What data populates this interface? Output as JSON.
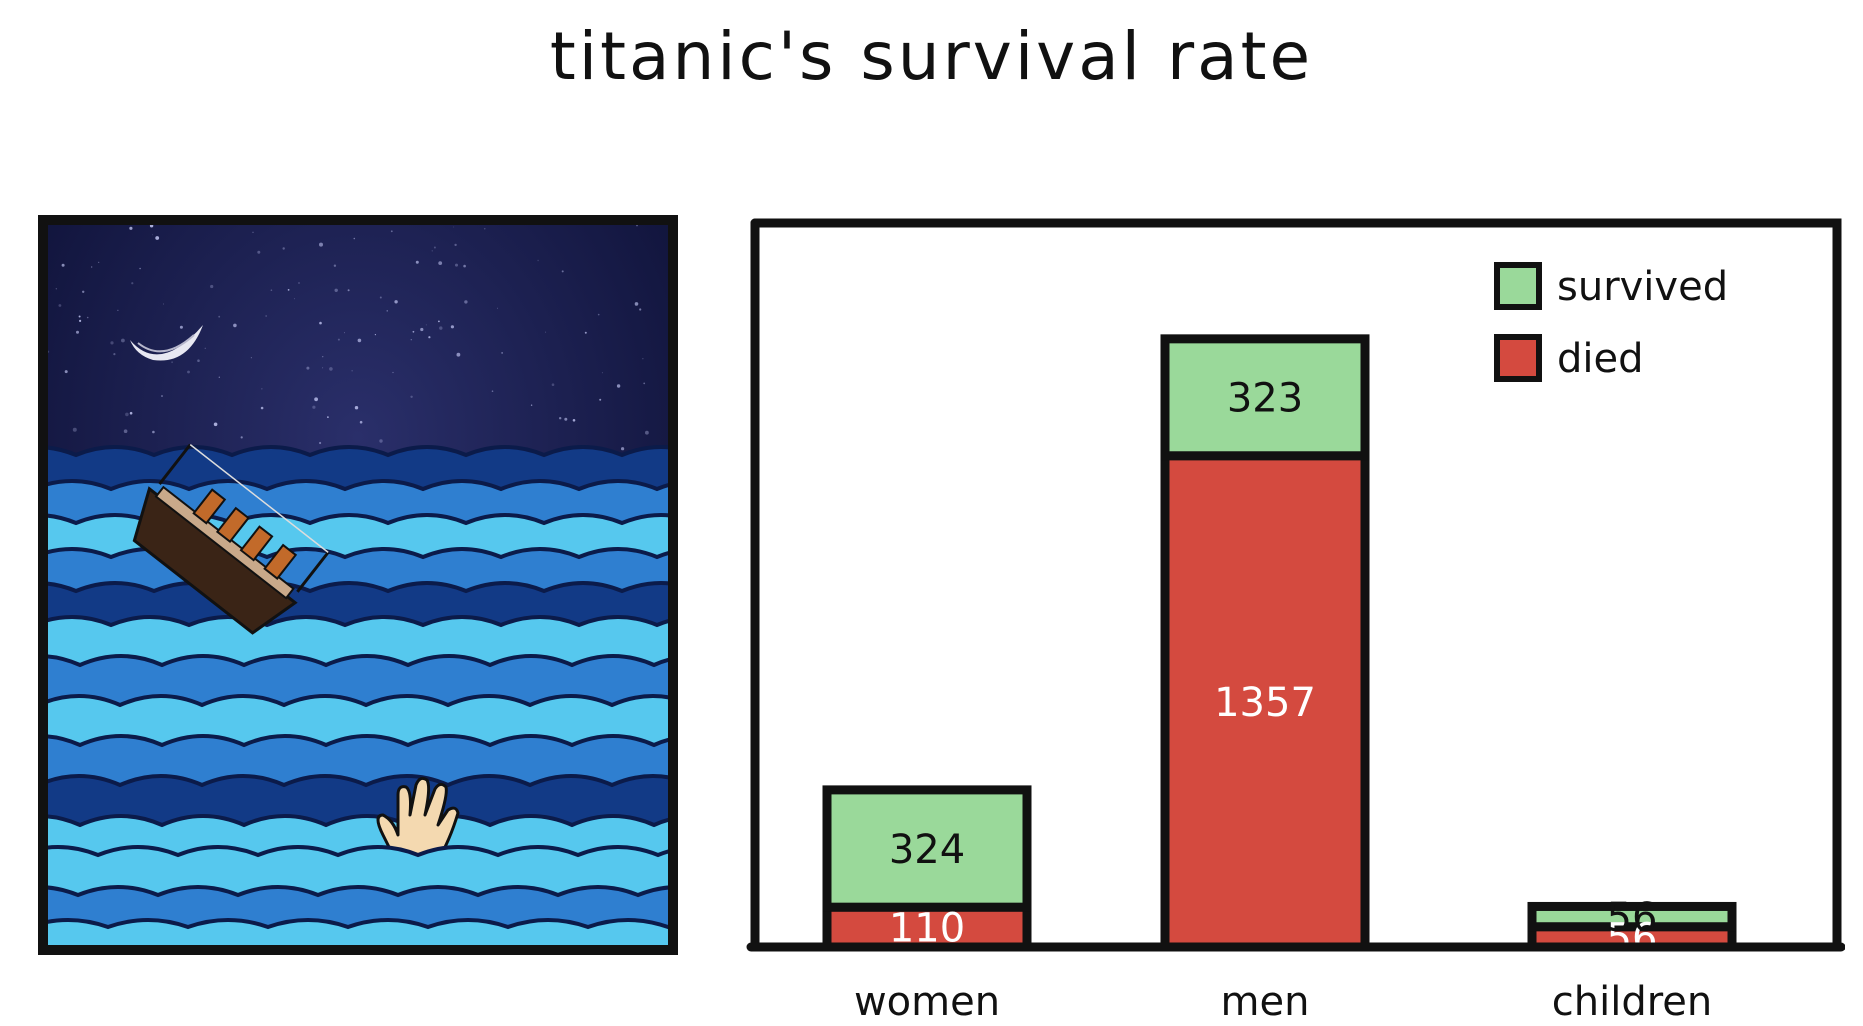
{
  "title": "titanic's survival rate",
  "colors": {
    "survived": "#9ad99a",
    "died": "#d44a3f",
    "outline": "#111111",
    "sky": "#111440",
    "sea_dark": "#123a86",
    "sea_mid": "#2f7fd0",
    "sea_light": "#56c8ee"
  },
  "illustration": {
    "icons": [
      "moon-icon",
      "sinking-ship-icon",
      "drowning-hand-icon",
      "waves"
    ]
  },
  "chart_data": {
    "type": "bar",
    "stacked": true,
    "categories": [
      "women",
      "men",
      "children"
    ],
    "series": [
      {
        "name": "died",
        "values": [
          110,
          1357,
          56
        ]
      },
      {
        "name": "survived",
        "values": [
          324,
          323,
          56
        ]
      }
    ],
    "data_labels": {
      "died": [
        "110",
        "1357",
        "56"
      ],
      "survived": [
        "324",
        "323",
        "56"
      ]
    },
    "legend": {
      "placement": "top-right",
      "entries": [
        "survived",
        "died"
      ]
    },
    "ylim": [
      0,
      2000
    ],
    "grid": false,
    "xlabel": "",
    "ylabel": ""
  }
}
